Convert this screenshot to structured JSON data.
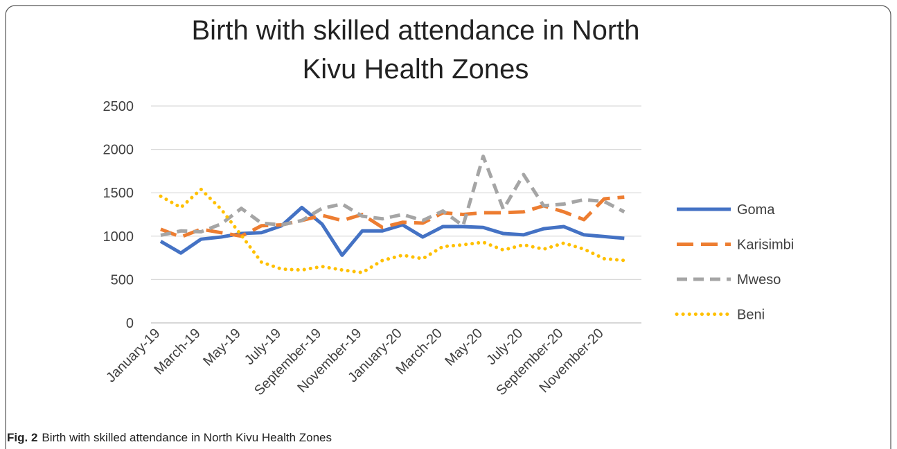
{
  "chart_data": {
    "type": "line",
    "title": "Birth with skilled attendance in North Kivu Health Zones",
    "categories": [
      "January-19",
      null,
      "March-19",
      null,
      "May-19",
      null,
      "July-19",
      null,
      "September-19",
      null,
      "November-19",
      null,
      "January-20",
      null,
      "March-20",
      null,
      "May-20",
      null,
      "July-20",
      null,
      "September-20",
      null,
      "November-20",
      null
    ],
    "series": [
      {
        "name": "Goma",
        "color": "#4472c4",
        "dash": "solid",
        "values": [
          940,
          805,
          965,
          990,
          1030,
          1040,
          1120,
          1330,
          1140,
          780,
          1060,
          1060,
          1130,
          990,
          1110,
          1110,
          1100,
          1030,
          1015,
          1085,
          1110,
          1015,
          995,
          975
        ]
      },
      {
        "name": "Karisimbi",
        "color": "#ed7d31",
        "dash": "longdash",
        "values": [
          1080,
          990,
          1080,
          1040,
          1000,
          1120,
          1130,
          1180,
          1240,
          1180,
          1250,
          1100,
          1160,
          1150,
          1270,
          1250,
          1270,
          1270,
          1280,
          1350,
          1280,
          1190,
          1430,
          1450
        ]
      },
      {
        "name": "Mweso",
        "color": "#a5a5a5",
        "dash": "dash",
        "values": [
          1010,
          1060,
          1050,
          1140,
          1320,
          1150,
          1130,
          1180,
          1320,
          1370,
          1230,
          1200,
          1250,
          1180,
          1290,
          1120,
          1920,
          1310,
          1710,
          1350,
          1370,
          1420,
          1400,
          1280
        ]
      },
      {
        "name": "Beni",
        "color": "#ffc000",
        "dash": "dot",
        "values": [
          1460,
          1330,
          1540,
          1310,
          1010,
          700,
          620,
          610,
          650,
          610,
          580,
          720,
          780,
          740,
          880,
          900,
          930,
          840,
          900,
          850,
          920,
          850,
          740,
          720
        ]
      }
    ],
    "ylim": [
      0,
      2500
    ],
    "yticks": [
      0,
      500,
      1000,
      1500,
      2000,
      2500
    ],
    "grid": true,
    "legend": "right"
  },
  "caption": {
    "label": "Fig. 2",
    "text": "Birth with skilled attendance in North Kivu Health Zones"
  }
}
